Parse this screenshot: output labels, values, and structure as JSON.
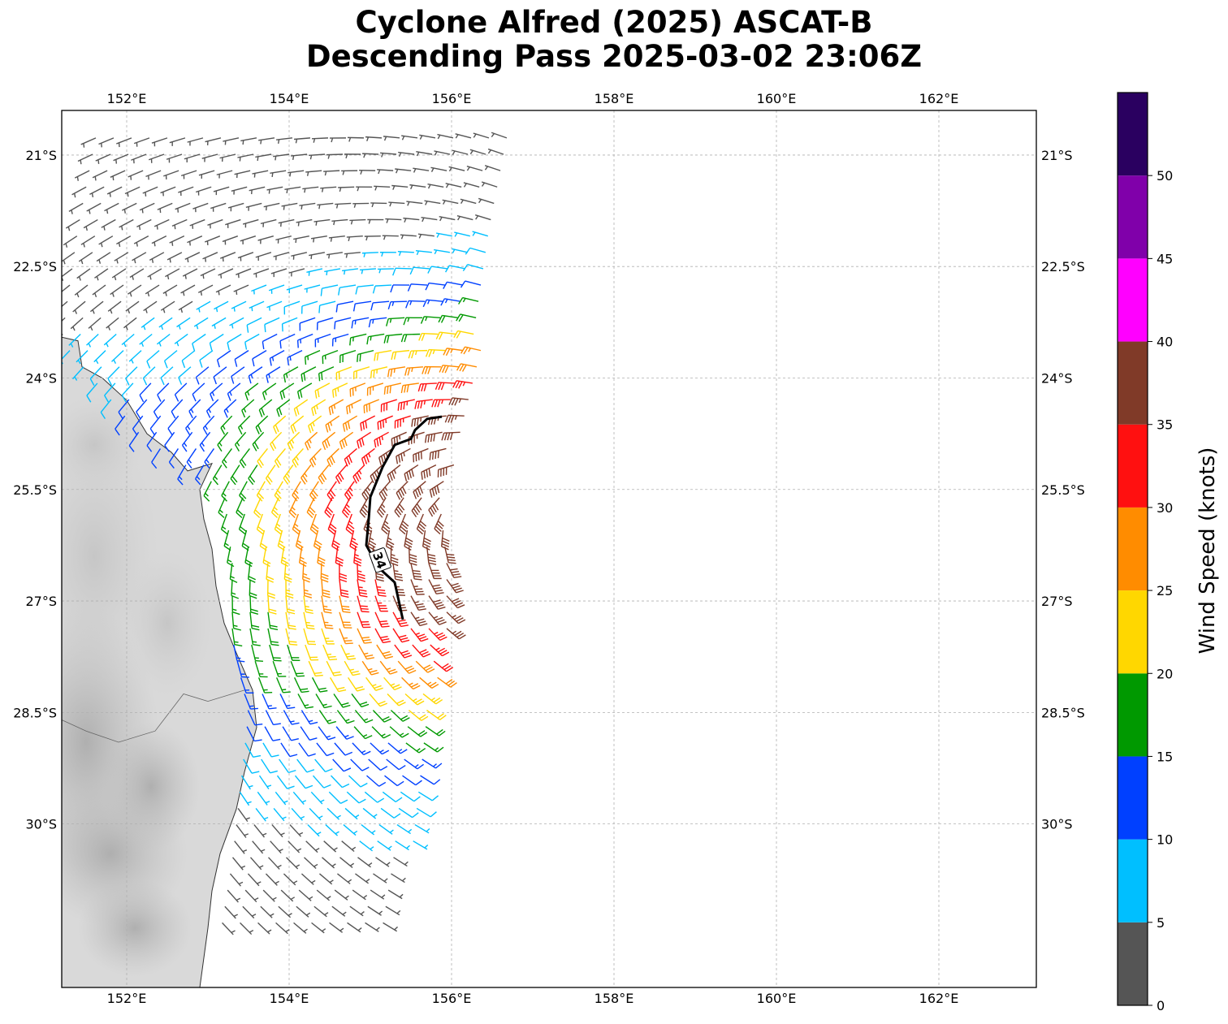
{
  "title_line1": "Cyclone Alfred (2025) ASCAT-B",
  "title_line2": "Descending Pass 2025-03-02 23:06Z",
  "map": {
    "lon_range": [
      151.2,
      163.2
    ],
    "lat_range": [
      -32.2,
      -20.4
    ],
    "lon_ticks": [
      152,
      154,
      156,
      158,
      160,
      162
    ],
    "lon_tick_labels": [
      "152°E",
      "154°E",
      "156°E",
      "158°E",
      "160°E",
      "162°E"
    ],
    "lat_ticks": [
      -21,
      -22.5,
      -24,
      -25.5,
      -27,
      -28.5,
      -30
    ],
    "lat_tick_labels": [
      "21°S",
      "22.5°S",
      "24°S",
      "25.5°S",
      "27°S",
      "28.5°S",
      "30°S"
    ],
    "grid": true,
    "land_shading": "grayscale terrain"
  },
  "contour": {
    "label": "34",
    "path": [
      [
        155.88,
        -24.52
      ],
      [
        155.7,
        -24.55
      ],
      [
        155.55,
        -24.7
      ],
      [
        155.5,
        -24.82
      ],
      [
        155.3,
        -24.9
      ],
      [
        155.15,
        -25.2
      ],
      [
        155.0,
        -25.6
      ],
      [
        154.98,
        -25.9
      ],
      [
        154.95,
        -26.25
      ],
      [
        155.1,
        -26.55
      ],
      [
        155.3,
        -26.75
      ],
      [
        155.35,
        -27.0
      ],
      [
        155.4,
        -27.25
      ]
    ]
  },
  "swath": {
    "left_edge": [
      [
        151.65,
        -20.6
      ],
      [
        151.4,
        -22.0
      ],
      [
        151.2,
        -23.5
      ],
      [
        152.2,
        -24.8
      ],
      [
        153.2,
        -25.5
      ],
      [
        153.3,
        -26.5
      ],
      [
        153.3,
        -27.5
      ],
      [
        153.5,
        -28.5
      ],
      [
        153.4,
        -29.5
      ],
      [
        153.3,
        -30.5
      ],
      [
        153.15,
        -31.5
      ],
      [
        153.1,
        -32.2
      ]
    ],
    "right_edge": [
      [
        156.9,
        -20.6
      ],
      [
        156.75,
        -21.5
      ],
      [
        156.6,
        -22.4
      ],
      [
        156.5,
        -23.2
      ],
      [
        156.3,
        -24.0
      ],
      [
        156.1,
        -25.0
      ],
      [
        156.0,
        -26.2
      ],
      [
        155.95,
        -27.3
      ],
      [
        155.85,
        -28.2
      ],
      [
        155.7,
        -29.2
      ],
      [
        155.55,
        -30.2
      ],
      [
        155.35,
        -31.0
      ],
      [
        155.3,
        -31.5
      ]
    ],
    "spacing_deg": 0.22
  },
  "wind_field": {
    "center": [
      156.6,
      -25.9
    ],
    "units": "knots"
  },
  "colorbar": {
    "label": "Wind Speed (knots)",
    "bounds": [
      0,
      5,
      10,
      15,
      20,
      25,
      30,
      35,
      40,
      45,
      50,
      55
    ],
    "tick_labels": [
      "0",
      "5",
      "10",
      "15",
      "20",
      "25",
      "30",
      "35",
      "40",
      "45",
      "50"
    ],
    "colors": [
      "#555555",
      "#00bfff",
      "#0040ff",
      "#009900",
      "#ffd700",
      "#ff8c00",
      "#ff1010",
      "#803a28",
      "#ff00ff",
      "#8000aa",
      "#2a0060"
    ]
  },
  "colors": {
    "land_base": "#d9d9d9",
    "coast": "#333333",
    "grid": "#b0b0b0"
  }
}
